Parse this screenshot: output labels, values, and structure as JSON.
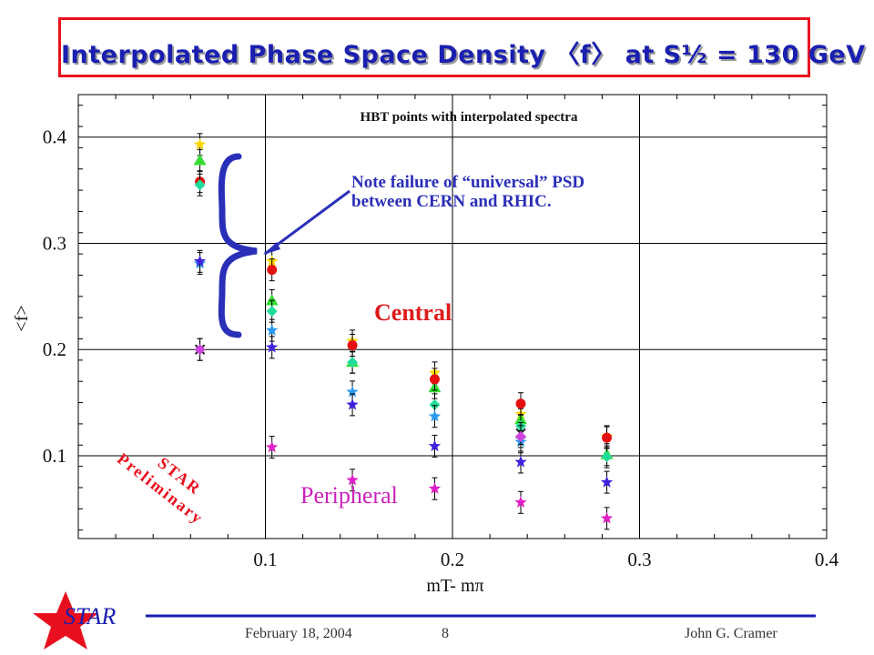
{
  "title": "Interpolated Phase Space Density 〈f〉 at S½ = 130 GeV",
  "chart_data": {
    "type": "scatter",
    "title": "HBT points with interpolated spectra",
    "xlabel": "mT- mπ",
    "ylabel": "<f>",
    "xlim": [
      0,
      0.4
    ],
    "ylim": [
      0.022,
      0.44
    ],
    "xticks": [
      0.1,
      0.2,
      0.3,
      0.4
    ],
    "xtick_labels": [
      "0.1",
      "0.2",
      "0.3",
      "0.4"
    ],
    "yticks": [
      0.1,
      0.2,
      0.3,
      0.4
    ],
    "ytick_labels": [
      "0.1",
      "0.2",
      "0.3",
      "0.4"
    ],
    "grid": true,
    "series": [
      {
        "marker": "star",
        "color": "#ffd700",
        "points": [
          [
            0.065,
            0.393
          ],
          [
            0.1035,
            0.283
          ],
          [
            0.1465,
            0.208
          ],
          [
            0.1905,
            0.178
          ],
          [
            0.2365,
            0.139
          ],
          [
            0.2825,
            0.118
          ]
        ]
      },
      {
        "marker": "triangle",
        "color": "#33dd33",
        "points": [
          [
            0.065,
            0.378
          ],
          [
            0.1035,
            0.246
          ],
          [
            0.1465,
            0.188
          ],
          [
            0.1905,
            0.164
          ],
          [
            0.2365,
            0.134
          ],
          [
            0.2825,
            0.101
          ]
        ]
      },
      {
        "marker": "circle",
        "color": "#e51010",
        "points": [
          [
            0.065,
            0.358
          ],
          [
            0.1035,
            0.275
          ],
          [
            0.1465,
            0.204
          ],
          [
            0.1905,
            0.172
          ],
          [
            0.2365,
            0.149
          ],
          [
            0.2825,
            0.117
          ]
        ]
      },
      {
        "marker": "diamond",
        "color": "#22dd99",
        "points": [
          [
            0.065,
            0.355
          ],
          [
            0.1035,
            0.236
          ],
          [
            0.1465,
            0.188
          ],
          [
            0.1905,
            0.148
          ],
          [
            0.2365,
            0.128
          ],
          [
            0.2825,
            0.099
          ]
        ]
      },
      {
        "marker": "star",
        "color": "#2a9af0",
        "points": [
          [
            0.065,
            0.281
          ],
          [
            0.1035,
            0.218
          ],
          [
            0.1465,
            0.16
          ],
          [
            0.1905,
            0.137
          ],
          [
            0.2365,
            0.113
          ]
        ]
      },
      {
        "marker": "star",
        "color": "#4422dd",
        "points": [
          [
            0.065,
            0.283
          ],
          [
            0.1035,
            0.202
          ],
          [
            0.1465,
            0.148
          ],
          [
            0.1905,
            0.109
          ],
          [
            0.2365,
            0.094
          ],
          [
            0.2825,
            0.075
          ]
        ]
      },
      {
        "marker": "cross",
        "color": "#222222",
        "points": [
          [
            0.065,
            0.2
          ],
          [
            0.2365,
            0.121
          ]
        ]
      },
      {
        "marker": "diamond",
        "color": "#cc44dd",
        "points": [
          [
            0.065,
            0.2
          ],
          [
            0.2365,
            0.118
          ]
        ]
      },
      {
        "marker": "star",
        "color": "#e020c8",
        "points": [
          [
            0.1035,
            0.108
          ],
          [
            0.1465,
            0.077
          ],
          [
            0.1905,
            0.069
          ],
          [
            0.2365,
            0.056
          ],
          [
            0.2825,
            0.041
          ]
        ]
      }
    ],
    "annotations": {
      "note_line1": "Note failure of “universal” PSD",
      "note_line2": "between CERN and RHIC.",
      "central": "Central",
      "peripheral": "Peripheral",
      "star_prelim_1": "STAR",
      "star_prelim_2": "Preliminary"
    }
  },
  "footer": {
    "logo": "STAR",
    "date": "February 18, 2004",
    "page": "8",
    "author": "John G. Cramer"
  },
  "colors": {
    "title_text": "#1a1fb0",
    "title_border": "#e8101e",
    "annotation_blue": "#2a2fb8",
    "central": "#dd1a1a",
    "peripheral": "#cc22bb",
    "star_logo": "#e8101e"
  }
}
